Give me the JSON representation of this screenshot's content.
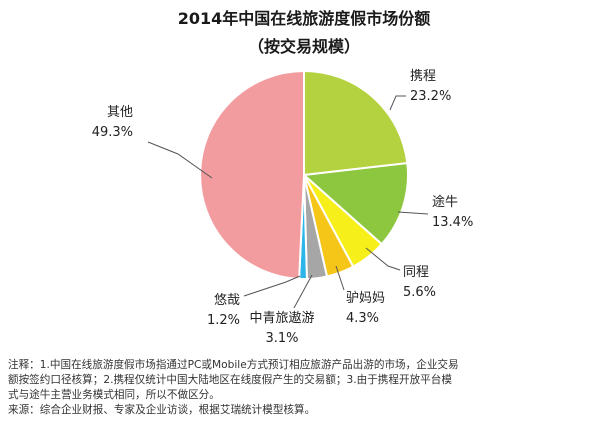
{
  "chart_data": {
    "type": "pie",
    "title": "2014年中国在线旅游度假市场份额",
    "subtitle": "（按交易规模）",
    "slices": [
      {
        "label": "携程",
        "value": 23.2,
        "value_label": "23.2%",
        "color": "#b4d23f"
      },
      {
        "label": "途牛",
        "value": 13.4,
        "value_label": "13.4%",
        "color": "#8dc63f"
      },
      {
        "label": "同程",
        "value": 5.6,
        "value_label": "5.6%",
        "color": "#f7ef1a"
      },
      {
        "label": "驴妈妈",
        "value": 4.3,
        "value_label": "4.3%",
        "color": "#f5c518"
      },
      {
        "label": "中青旅遨游",
        "value": 3.1,
        "value_label": "3.1%",
        "color": "#a6a6a6"
      },
      {
        "label": "悠哉",
        "value": 1.2,
        "value_label": "1.2%",
        "color": "#2bb5e8"
      },
      {
        "label": "其他",
        "value": 49.3,
        "value_label": "49.3%",
        "color": "#f29c9f"
      }
    ],
    "start_angle_deg": 0,
    "direction": "clockwise"
  },
  "notes": {
    "line1": "注释：1.中国在线旅游度假市场指通过PC或Mobile方式预订相应旅游产品出游的市场，企业交易",
    "line2": "额按签约口径核算；2.携程仅统计中国大陆地区在线度假产生的交易额；3.由于携程开放平台模",
    "line3": "式与途牛主营业务模式相同，所以不做区分。",
    "source": "来源：综合企业财报、专家及企业访谈，根据艾瑞统计模型核算。"
  }
}
